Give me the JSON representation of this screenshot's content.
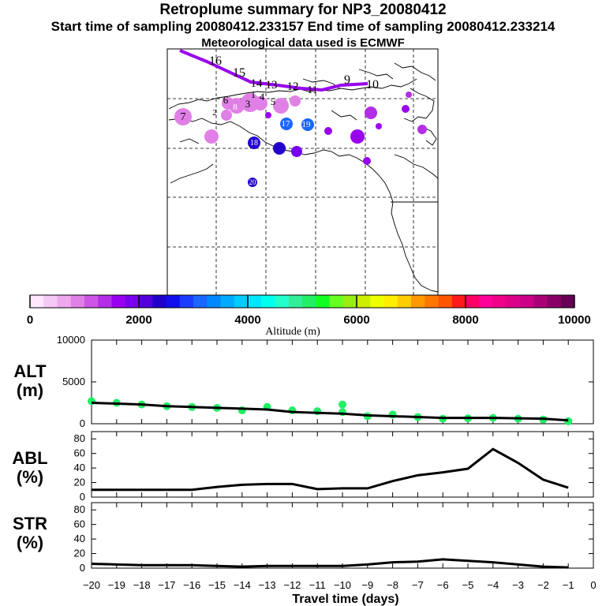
{
  "header": {
    "title": "Retroplume summary for NP3_20080412",
    "subtitle": "Start time of sampling 20080412.233157     End time of sampling 20080412.233214",
    "met": "Meteorological data used is ECMWF"
  },
  "colorbar": {
    "label": "Altitude (m)",
    "tick_labels": [
      "0",
      "2000",
      "4000",
      "6000",
      "8000",
      "10000"
    ],
    "colors": [
      "#ffe8ff",
      "#f6c8f6",
      "#eea8ee",
      "#e080e6",
      "#cc55e6",
      "#b32ee6",
      "#9900ee",
      "#7700ee",
      "#5500dd",
      "#2200cc",
      "#1010ee",
      "#1a3cff",
      "#1a66ff",
      "#0088ff",
      "#00aaff",
      "#00ccff",
      "#00e6ff",
      "#00ffee",
      "#22ffcc",
      "#33ee99",
      "#22ee66",
      "#11ff22",
      "#66ff22",
      "#99ee11",
      "#ccee00",
      "#eeff00",
      "#ffee00",
      "#ffcc00",
      "#ff9900",
      "#ff7700",
      "#ff5500",
      "#ff1a1a",
      "#ff0066",
      "#ff0099",
      "#ee0088",
      "#dd0088",
      "#cc0088",
      "#aa0077",
      "#880066",
      "#660055"
    ]
  },
  "map": {
    "labels": [
      {
        "t": "16",
        "c": "#000000"
      },
      {
        "t": "15",
        "c": "#000000"
      },
      {
        "t": "14",
        "c": "#000000"
      },
      {
        "t": "13",
        "c": "#000000"
      },
      {
        "t": "12",
        "c": "#000000"
      },
      {
        "t": "11",
        "c": "#000000"
      },
      {
        "t": "10",
        "c": "#000000"
      },
      {
        "t": "9",
        "c": "#000000"
      },
      {
        "t": "7",
        "c": "#000000"
      },
      {
        "t": "6",
        "c": "#000000"
      },
      {
        "t": "5",
        "c": "#000000"
      },
      {
        "t": "4",
        "c": "#000000"
      },
      {
        "t": "3",
        "c": "#000000"
      },
      {
        "t": "2",
        "c": "#000000"
      },
      {
        "t": "1",
        "c": "#000000"
      },
      {
        "t": "17",
        "c": "#ffffff"
      },
      {
        "t": "18",
        "c": "#ffffff"
      },
      {
        "t": "19",
        "c": "#ffffff"
      },
      {
        "t": "20",
        "c": "#ffffff"
      },
      {
        "t": "8",
        "c": "#ffffff"
      }
    ]
  },
  "chart_data": [
    {
      "type": "scatter",
      "name": "ALT",
      "ylabel": "ALT\n(m)",
      "ylabel_lines": [
        "ALT",
        "(m)"
      ],
      "ylim": [
        0,
        10000
      ],
      "yticks": [
        "0",
        "5000",
        "10000"
      ],
      "x": [
        -20,
        -19,
        -18,
        -17,
        -16,
        -15,
        -14,
        -13,
        -12,
        -11,
        -10,
        -9,
        -8,
        -7,
        -6,
        -5,
        -4,
        -3,
        -2,
        -1
      ],
      "median": [
        2500,
        2400,
        2300,
        2100,
        2000,
        1900,
        1800,
        1700,
        1400,
        1300,
        1200,
        1000,
        900,
        800,
        700,
        700,
        700,
        650,
        600,
        400
      ],
      "points": [
        [
          -20,
          2700
        ],
        [
          -19,
          2500
        ],
        [
          -18,
          2300
        ],
        [
          -17,
          2100
        ],
        [
          -16,
          2000
        ],
        [
          -15,
          1900
        ],
        [
          -14,
          1600
        ],
        [
          -13,
          2000
        ],
        [
          -12,
          1600
        ],
        [
          -11,
          1500
        ],
        [
          -10,
          2300
        ],
        [
          -10,
          1400
        ],
        [
          -9,
          900
        ],
        [
          -8,
          1100
        ],
        [
          -7,
          800
        ],
        [
          -6,
          600
        ],
        [
          -5,
          650
        ],
        [
          -4,
          700
        ],
        [
          -3,
          600
        ],
        [
          -2,
          500
        ],
        [
          -1,
          300
        ]
      ],
      "point_color": "#22ee66"
    },
    {
      "type": "line",
      "name": "ABL",
      "ylabel_lines": [
        "ABL",
        "(%)"
      ],
      "ylim": [
        0,
        90
      ],
      "yticks": [
        "0",
        "20",
        "40",
        "60",
        "80"
      ],
      "x": [
        -20,
        -19,
        -18,
        -17,
        -16,
        -15,
        -14,
        -13,
        -12,
        -11,
        -10,
        -9,
        -8,
        -7,
        -6,
        -5,
        -4,
        -3,
        -2,
        -1
      ],
      "values": [
        10,
        10,
        10,
        10,
        10,
        14,
        17,
        18,
        18,
        11,
        12,
        12,
        22,
        30,
        34,
        39,
        66,
        47,
        24,
        13
      ]
    },
    {
      "type": "line",
      "name": "STR",
      "ylabel_lines": [
        "STR",
        "(%)"
      ],
      "ylim": [
        0,
        90
      ],
      "yticks": [
        "0",
        "20",
        "40",
        "60",
        "80"
      ],
      "x": [
        -20,
        -19,
        -18,
        -17,
        -16,
        -15,
        -14,
        -13,
        -12,
        -11,
        -10,
        -9,
        -8,
        -7,
        -6,
        -5,
        -4,
        -3,
        -2,
        -1
      ],
      "values": [
        6,
        5,
        4,
        4,
        4,
        3,
        2,
        3,
        3,
        3,
        3,
        5,
        8,
        9,
        12,
        10,
        8,
        5,
        2,
        1
      ]
    }
  ],
  "xaxis": {
    "label": "Travel time (days)",
    "tick_labels": [
      "−20",
      "−19",
      "−18",
      "−17",
      "−16",
      "−15",
      "−14",
      "−13",
      "−12",
      "−11",
      "−10",
      "−9",
      "−8",
      "−7",
      "−6",
      "−5",
      "−4",
      "−3",
      "−2",
      "−1",
      "0"
    ]
  }
}
